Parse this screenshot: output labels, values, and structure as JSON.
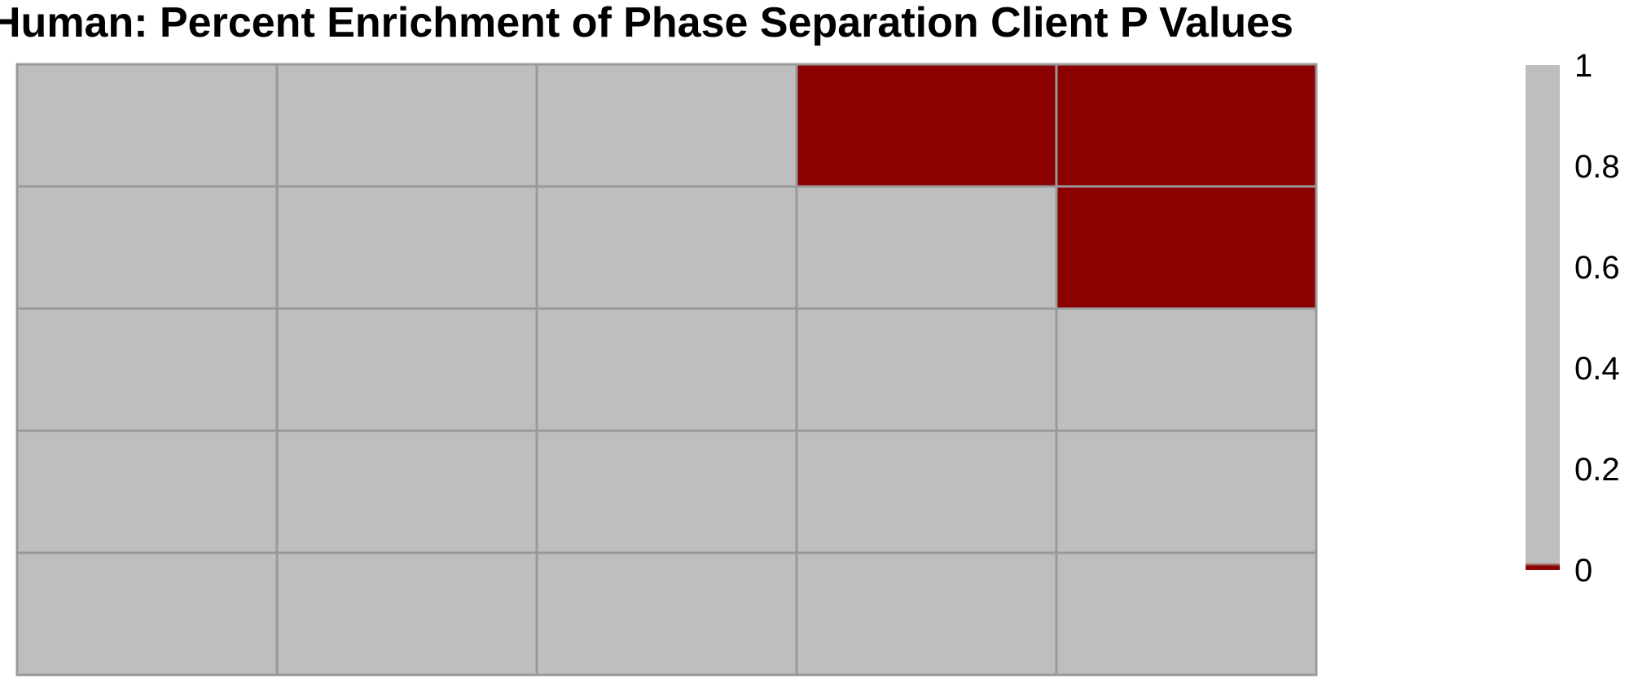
{
  "chart_data": {
    "type": "heatmap",
    "title": "Human: Percent Enrichment of Phase Separation Client P Values",
    "rows": 5,
    "cols": 5,
    "values": [
      [
        1,
        1,
        1,
        0,
        0
      ],
      [
        1,
        1,
        1,
        1,
        0
      ],
      [
        1,
        1,
        1,
        1,
        1
      ],
      [
        1,
        1,
        1,
        1,
        1
      ],
      [
        1,
        1,
        1,
        1,
        1
      ]
    ],
    "colors": {
      "high": "#bebebe",
      "low": "#8b0000",
      "grid": "#999999"
    },
    "colorbar": {
      "range": [
        0,
        1
      ],
      "ticks": [
        "1",
        "0.8",
        "0.6",
        "0.4",
        "0.2",
        "0"
      ]
    },
    "legend": "right"
  }
}
